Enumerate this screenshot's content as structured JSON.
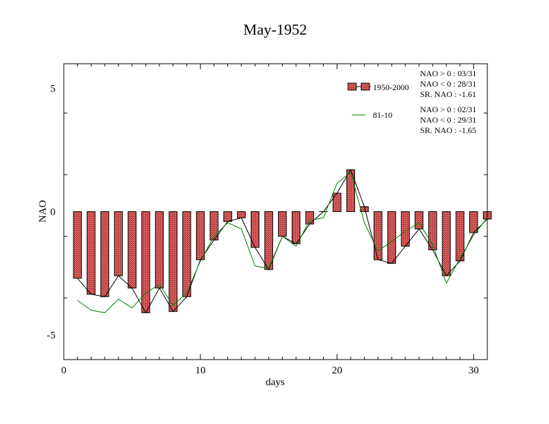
{
  "chart_data": {
    "type": "bar",
    "title": "May-1952",
    "xlabel": "days",
    "ylabel": "NAO",
    "xlim": [
      0,
      31
    ],
    "ylim": [
      -6,
      6
    ],
    "x_ticks": [
      0,
      10,
      20,
      30
    ],
    "y_ticks": [
      -5,
      0,
      5
    ],
    "grid": false,
    "legend_position": "top-right",
    "x": [
      1,
      2,
      3,
      4,
      5,
      6,
      7,
      8,
      9,
      10,
      11,
      12,
      13,
      14,
      15,
      16,
      17,
      18,
      19,
      20,
      21,
      22,
      23,
      24,
      25,
      26,
      27,
      28,
      29,
      30,
      31
    ],
    "series": [
      {
        "name": "1950-2000",
        "type": "bar",
        "color": "#e06060",
        "values": [
          -2.7,
          -3.35,
          -3.45,
          -2.6,
          -3.1,
          -4.1,
          -3.1,
          -4.05,
          -3.45,
          -1.95,
          -1.15,
          -0.4,
          -0.25,
          -1.45,
          -2.35,
          -1.0,
          -1.3,
          -0.5,
          0.0,
          0.75,
          1.7,
          0.2,
          -1.95,
          -2.1,
          -1.4,
          -0.7,
          -1.55,
          -2.6,
          -2.0,
          -0.85,
          -0.3
        ],
        "stats": [
          "NAO > 0 : 03/31",
          "NAO < 0 : 28/31",
          "SR. NAO : -1.61"
        ]
      },
      {
        "name": "",
        "type": "line",
        "color": "#000000",
        "values": [
          -2.7,
          -3.35,
          -3.45,
          -2.6,
          -3.1,
          -4.1,
          -3.1,
          -4.05,
          -3.45,
          -1.95,
          -1.15,
          -0.4,
          -0.25,
          -1.45,
          -2.35,
          -1.0,
          -1.3,
          -0.5,
          0.0,
          0.75,
          1.7,
          0.2,
          -1.95,
          -2.1,
          -1.4,
          -0.7,
          -1.55,
          -2.6,
          -2.0,
          -0.85,
          -0.3
        ]
      },
      {
        "name": "81-10",
        "type": "line",
        "color": "#008000",
        "values": [
          -3.6,
          -4.0,
          -4.1,
          -3.55,
          -3.9,
          -3.3,
          -2.95,
          -3.8,
          -3.3,
          -2.0,
          -1.0,
          -0.45,
          -0.7,
          -2.2,
          -2.3,
          -1.0,
          -1.4,
          -0.35,
          -0.25,
          1.15,
          1.6,
          -0.45,
          -1.6,
          -1.2,
          -0.8,
          -0.45,
          -1.35,
          -2.9,
          -1.9,
          -0.95,
          -0.25
        ],
        "stats": [
          "NAO > 0 : 02/31",
          "NAO < 0 : 29/31",
          "SR. NAO : -1.65"
        ]
      }
    ]
  }
}
